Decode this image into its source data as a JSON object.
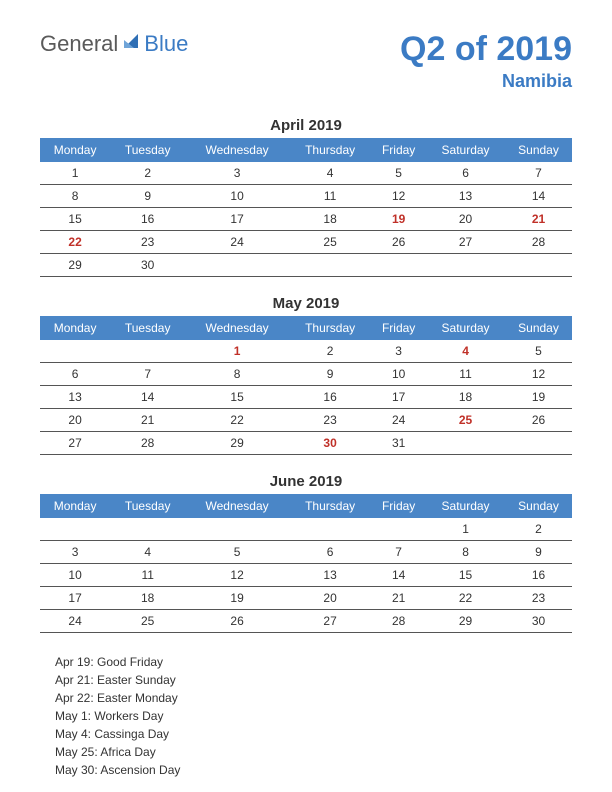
{
  "logo": {
    "text_general": "General",
    "text_blue": "Blue",
    "icon_color": "#2f6fb5"
  },
  "title": {
    "main": "Q2 of 2019",
    "sub": "Namibia",
    "color": "#3b7bc4"
  },
  "header_bg": "#4a86c7",
  "holiday_color": "#c03028",
  "weekdays": [
    "Monday",
    "Tuesday",
    "Wednesday",
    "Thursday",
    "Friday",
    "Saturday",
    "Sunday"
  ],
  "months": [
    {
      "title": "April 2019",
      "weeks": [
        [
          {
            "d": "1"
          },
          {
            "d": "2"
          },
          {
            "d": "3"
          },
          {
            "d": "4"
          },
          {
            "d": "5"
          },
          {
            "d": "6"
          },
          {
            "d": "7"
          }
        ],
        [
          {
            "d": "8"
          },
          {
            "d": "9"
          },
          {
            "d": "10"
          },
          {
            "d": "11"
          },
          {
            "d": "12"
          },
          {
            "d": "13"
          },
          {
            "d": "14"
          }
        ],
        [
          {
            "d": "15"
          },
          {
            "d": "16"
          },
          {
            "d": "17"
          },
          {
            "d": "18"
          },
          {
            "d": "19",
            "h": true
          },
          {
            "d": "20"
          },
          {
            "d": "21",
            "h": true
          }
        ],
        [
          {
            "d": "22",
            "h": true
          },
          {
            "d": "23"
          },
          {
            "d": "24"
          },
          {
            "d": "25"
          },
          {
            "d": "26"
          },
          {
            "d": "27"
          },
          {
            "d": "28"
          }
        ],
        [
          {
            "d": "29"
          },
          {
            "d": "30"
          },
          {
            "d": ""
          },
          {
            "d": ""
          },
          {
            "d": ""
          },
          {
            "d": ""
          },
          {
            "d": ""
          }
        ]
      ]
    },
    {
      "title": "May 2019",
      "weeks": [
        [
          {
            "d": ""
          },
          {
            "d": ""
          },
          {
            "d": "1",
            "h": true
          },
          {
            "d": "2"
          },
          {
            "d": "3"
          },
          {
            "d": "4",
            "h": true
          },
          {
            "d": "5"
          }
        ],
        [
          {
            "d": "6"
          },
          {
            "d": "7"
          },
          {
            "d": "8"
          },
          {
            "d": "9"
          },
          {
            "d": "10"
          },
          {
            "d": "11"
          },
          {
            "d": "12"
          }
        ],
        [
          {
            "d": "13"
          },
          {
            "d": "14"
          },
          {
            "d": "15"
          },
          {
            "d": "16"
          },
          {
            "d": "17"
          },
          {
            "d": "18"
          },
          {
            "d": "19"
          }
        ],
        [
          {
            "d": "20"
          },
          {
            "d": "21"
          },
          {
            "d": "22"
          },
          {
            "d": "23"
          },
          {
            "d": "24"
          },
          {
            "d": "25",
            "h": true
          },
          {
            "d": "26"
          }
        ],
        [
          {
            "d": "27"
          },
          {
            "d": "28"
          },
          {
            "d": "29"
          },
          {
            "d": "30",
            "h": true
          },
          {
            "d": "31"
          },
          {
            "d": ""
          },
          {
            "d": ""
          }
        ]
      ]
    },
    {
      "title": "June 2019",
      "weeks": [
        [
          {
            "d": ""
          },
          {
            "d": ""
          },
          {
            "d": ""
          },
          {
            "d": ""
          },
          {
            "d": ""
          },
          {
            "d": "1"
          },
          {
            "d": "2"
          }
        ],
        [
          {
            "d": "3"
          },
          {
            "d": "4"
          },
          {
            "d": "5"
          },
          {
            "d": "6"
          },
          {
            "d": "7"
          },
          {
            "d": "8"
          },
          {
            "d": "9"
          }
        ],
        [
          {
            "d": "10"
          },
          {
            "d": "11"
          },
          {
            "d": "12"
          },
          {
            "d": "13"
          },
          {
            "d": "14"
          },
          {
            "d": "15"
          },
          {
            "d": "16"
          }
        ],
        [
          {
            "d": "17"
          },
          {
            "d": "18"
          },
          {
            "d": "19"
          },
          {
            "d": "20"
          },
          {
            "d": "21"
          },
          {
            "d": "22"
          },
          {
            "d": "23"
          }
        ],
        [
          {
            "d": "24"
          },
          {
            "d": "25"
          },
          {
            "d": "26"
          },
          {
            "d": "27"
          },
          {
            "d": "28"
          },
          {
            "d": "29"
          },
          {
            "d": "30"
          }
        ]
      ]
    }
  ],
  "holidays_list": [
    "Apr 19: Good Friday",
    "Apr 21: Easter Sunday",
    "Apr 22: Easter Monday",
    "May 1: Workers Day",
    "May 4: Cassinga Day",
    "May 25: Africa Day",
    "May 30: Ascension Day"
  ]
}
